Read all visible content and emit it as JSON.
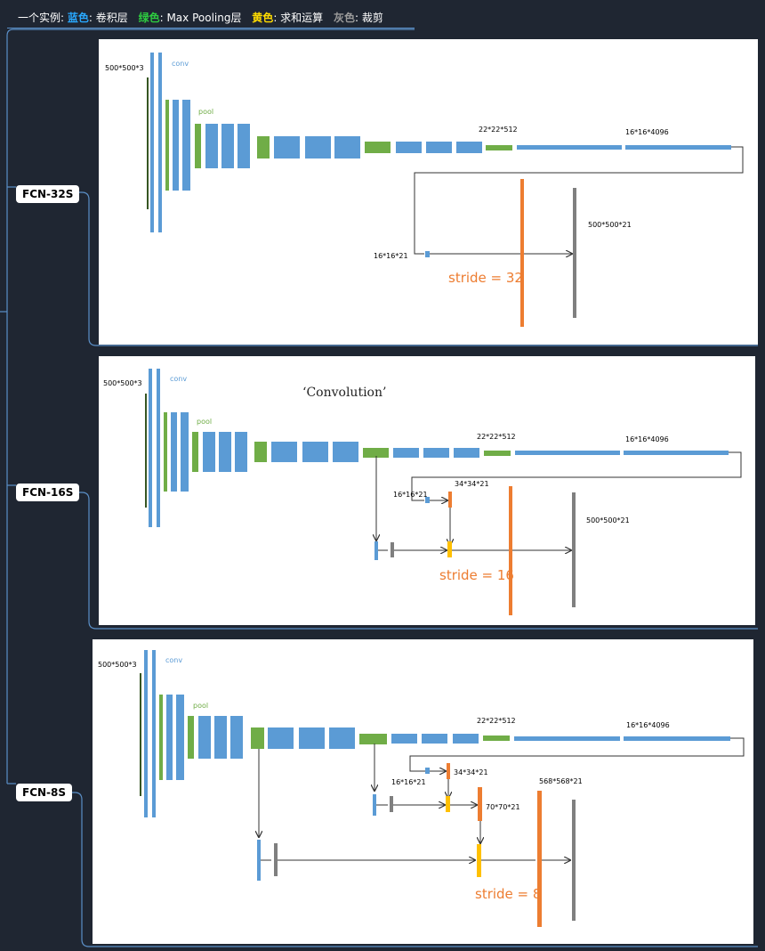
{
  "header": {
    "intro": "一个实例:",
    "blue_key": "蓝色",
    "blue_desc": ": 卷积层",
    "green_key": "绿色",
    "green_desc": ": Max Pooling层",
    "yellow_key": "黄色",
    "yellow_desc": ": 求和运算",
    "gray_key": "灰色",
    "gray_desc": ": 裁剪"
  },
  "colors": {
    "background": "#1f2632",
    "connector": "#5b8fc7",
    "conv_blue": "#5b9bd5",
    "pool_green": "#70ad47",
    "sum_yellow": "#ffc000",
    "crop_gray": "#7f7f7f",
    "deconv_orange": "#ed7d31"
  },
  "fcn32": {
    "tag": "FCN-32S",
    "input_label": "500*500*3",
    "conv_label": "conv",
    "pool_label": "pool",
    "size_22": "22*22*512",
    "size_16_4096": "16*16*4096",
    "size_16_21": "16*16*21",
    "size_out": "500*500*21",
    "stride": "stride = 32"
  },
  "fcn16": {
    "tag": "FCN-16S",
    "input_label": "500*500*3",
    "conv_label": "conv",
    "pool_label": "pool",
    "convolution_title": "‘Convolution’",
    "size_22": "22*22*512",
    "size_16_4096": "16*16*4096",
    "size_16_21": "16*16*21",
    "size_34": "34*34*21",
    "size_out": "500*500*21",
    "stride": "stride = 16"
  },
  "fcn8": {
    "tag": "FCN-8S",
    "input_label": "500*500*3",
    "conv_label": "conv",
    "pool_label": "pool",
    "size_22": "22*22*512",
    "size_16_4096": "16*16*4096",
    "size_16_21": "16*16*21",
    "size_34": "34*34*21",
    "size_70": "70*70*21",
    "size_568": "568*568*21",
    "stride": "stride = 8"
  }
}
